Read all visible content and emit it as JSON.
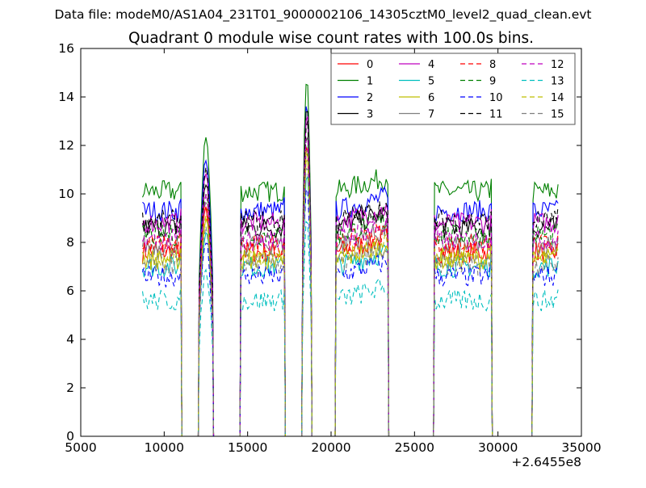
{
  "header": {
    "file_line": "Data file: modeM0/AS1A04_231T01_9000002106_14305cztM0_level2_quad_clean.evt"
  },
  "chart_data": {
    "type": "line",
    "title": "Quadrant 0 module wise count rates with 100.0s bins.",
    "xlabel": "",
    "ylabel": "",
    "x_offset_label": "+2.6455e8",
    "xlim": [
      5000,
      35000
    ],
    "ylim": [
      0,
      16
    ],
    "x_ticks": [
      5000,
      10000,
      15000,
      20000,
      25000,
      30000,
      35000
    ],
    "y_ticks": [
      0,
      2,
      4,
      6,
      8,
      10,
      12,
      14,
      16
    ],
    "legend_position": "top-right",
    "intervals": [
      [
        8700,
        11000
      ],
      [
        12100,
        12900
      ],
      [
        14600,
        17200
      ],
      [
        18300,
        18800
      ],
      [
        20300,
        23400
      ],
      [
        26200,
        29600
      ],
      [
        32100,
        33600
      ]
    ],
    "series": [
      {
        "name": "0",
        "color": "#ff0000",
        "dash": "solid",
        "level": 7.6,
        "peak": 12.0
      },
      {
        "name": "1",
        "color": "#008000",
        "dash": "solid",
        "level": 10.1,
        "peak": 15.0
      },
      {
        "name": "2",
        "color": "#0000ff",
        "dash": "solid",
        "level": 9.3,
        "peak": 13.8
      },
      {
        "name": "3",
        "color": "#000000",
        "dash": "solid",
        "level": 8.6,
        "peak": 13.8
      },
      {
        "name": "4",
        "color": "#bf00bf",
        "dash": "solid",
        "level": 8.8,
        "peak": 13.5
      },
      {
        "name": "5",
        "color": "#00bfbf",
        "dash": "solid",
        "level": 7.0,
        "peak": 11.0
      },
      {
        "name": "6",
        "color": "#bfbf00",
        "dash": "solid",
        "level": 7.3,
        "peak": 11.5
      },
      {
        "name": "7",
        "color": "#808080",
        "dash": "solid",
        "level": 7.9,
        "peak": 12.0
      },
      {
        "name": "8",
        "color": "#ff0000",
        "dash": "dashed",
        "level": 7.9,
        "peak": 12.2
      },
      {
        "name": "9",
        "color": "#008000",
        "dash": "dashed",
        "level": 8.3,
        "peak": 12.5
      },
      {
        "name": "10",
        "color": "#0000ff",
        "dash": "dashed",
        "level": 6.6,
        "peak": 10.5
      },
      {
        "name": "11",
        "color": "#000000",
        "dash": "dashed",
        "level": 8.9,
        "peak": 13.2
      },
      {
        "name": "12",
        "color": "#bf00bf",
        "dash": "dashed",
        "level": 8.1,
        "peak": 12.6
      },
      {
        "name": "13",
        "color": "#00bfbf",
        "dash": "dashed",
        "level": 5.6,
        "peak": 9.0
      },
      {
        "name": "14",
        "color": "#bfbf00",
        "dash": "dashed",
        "level": 7.4,
        "peak": 11.8
      },
      {
        "name": "15",
        "color": "#808080",
        "dash": "dashed",
        "level": 7.1,
        "peak": 11.3
      }
    ]
  }
}
